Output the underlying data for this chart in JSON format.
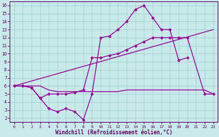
{
  "xlabel": "Windchill (Refroidissement éolien,°C)",
  "xlim": [
    -0.5,
    23.5
  ],
  "ylim": [
    1.5,
    16.5
  ],
  "yticks": [
    2,
    3,
    4,
    5,
    6,
    7,
    8,
    9,
    10,
    11,
    12,
    13,
    14,
    15,
    16
  ],
  "xticks": [
    0,
    1,
    2,
    3,
    4,
    5,
    6,
    7,
    8,
    9,
    10,
    11,
    12,
    13,
    14,
    15,
    16,
    17,
    18,
    19,
    20,
    21,
    22,
    23
  ],
  "bg_color": "#c8eaea",
  "line_color": "#990099",
  "grid_color": "#a0cccc",
  "lw": 0.9,
  "ms": 2.2,
  "line1_x": [
    0,
    1,
    2,
    3,
    4,
    5,
    6,
    7,
    8,
    9,
    10,
    11,
    12,
    13,
    14,
    15,
    16,
    17,
    18,
    19,
    20
  ],
  "line1_y": [
    6.0,
    6.0,
    5.8,
    4.5,
    3.2,
    2.8,
    3.2,
    2.8,
    1.8,
    5.0,
    12.0,
    12.2,
    13.0,
    14.0,
    15.5,
    16.0,
    14.5,
    13.0,
    13.0,
    9.2,
    9.5
  ],
  "line2_x": [
    0,
    1,
    2,
    3,
    4,
    5,
    6,
    7,
    8,
    9,
    10,
    11,
    12,
    13,
    14,
    15,
    16,
    17,
    18,
    19,
    20,
    22,
    23
  ],
  "line2_y": [
    6.0,
    6.0,
    5.8,
    4.5,
    5.0,
    5.0,
    5.0,
    5.2,
    5.5,
    9.5,
    9.5,
    9.8,
    10.0,
    10.5,
    11.0,
    11.5,
    12.0,
    12.0,
    12.0,
    12.0,
    12.0,
    5.0,
    5.0
  ],
  "line3_x": [
    0,
    23
  ],
  "line3_y": [
    6.0,
    13.0
  ],
  "line4_x": [
    0,
    1,
    2,
    3,
    4,
    5,
    6,
    7,
    8,
    9,
    10,
    11,
    12,
    13,
    14,
    15,
    16,
    17,
    18,
    19,
    20,
    21,
    22,
    23
  ],
  "line4_y": [
    6.0,
    6.0,
    6.0,
    6.0,
    5.5,
    5.3,
    5.3,
    5.3,
    5.3,
    5.3,
    5.3,
    5.3,
    5.3,
    5.5,
    5.5,
    5.5,
    5.5,
    5.5,
    5.5,
    5.5,
    5.5,
    5.5,
    5.5,
    5.0
  ]
}
